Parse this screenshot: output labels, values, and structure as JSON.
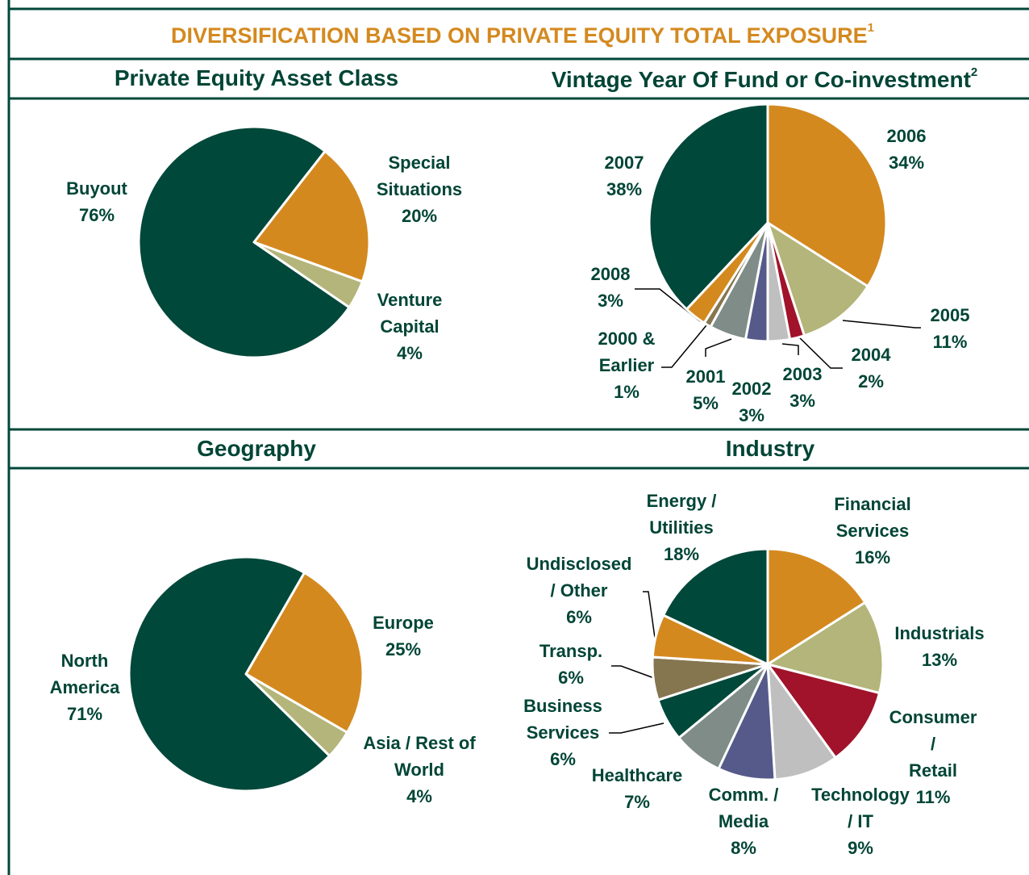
{
  "title": "DIVERSIFICATION BASED ON PRIVATE EQUITY TOTAL EXPOSURE",
  "title_note": "1",
  "chart_data": [
    {
      "type": "pie",
      "title": "Private Equity Asset Class",
      "categories": [
        "Special\nSituations",
        "Venture\nCapital",
        "Buyout"
      ],
      "values": [
        20,
        4,
        76
      ],
      "value_labels": [
        "20%",
        "4%",
        "76%"
      ],
      "colors": [
        "#d4891f",
        "#b3b57a",
        "#00483a"
      ]
    },
    {
      "type": "pie",
      "title": "Vintage Year Of Fund or Co-investment",
      "title_note": "2",
      "categories": [
        "2006",
        "2005",
        "2004",
        "2003",
        "2002",
        "2001",
        "2000 &\nEarlier",
        "2008",
        "2007"
      ],
      "values": [
        34,
        11,
        2,
        3,
        3,
        5,
        1,
        3,
        38
      ],
      "value_labels": [
        "34%",
        "11%",
        "2%",
        "3%",
        "3%",
        "5%",
        "1%",
        "3%",
        "38%"
      ],
      "colors": [
        "#d4891f",
        "#b3b57a",
        "#a0132a",
        "#bfbfbf",
        "#565a8a",
        "#7f8c87",
        "#857650",
        "#d4891f",
        "#00483a"
      ]
    },
    {
      "type": "pie",
      "title": "Geography",
      "categories": [
        "Europe",
        "Asia / Rest of\nWorld",
        "North\nAmerica"
      ],
      "values": [
        25,
        4,
        71
      ],
      "value_labels": [
        "25%",
        "4%",
        "71%"
      ],
      "colors": [
        "#d4891f",
        "#b3b57a",
        "#00483a"
      ]
    },
    {
      "type": "pie",
      "title": "Industry",
      "categories": [
        "Financial\nServices",
        "Industrials",
        "Consumer /\nRetail",
        "Technology\n/ IT",
        "Comm. /\nMedia",
        "Healthcare",
        "Business\nServices",
        "Transp.",
        "Undisclosed\n/ Other",
        "Energy /\nUtilities"
      ],
      "values": [
        16,
        13,
        11,
        9,
        8,
        7,
        6,
        6,
        6,
        18
      ],
      "value_labels": [
        "16%",
        "13%",
        "11%",
        "9%",
        "8%",
        "7%",
        "6%",
        "6%",
        "6%",
        "18%"
      ],
      "colors": [
        "#d4891f",
        "#b3b57a",
        "#a0132a",
        "#bfbfbf",
        "#565a8a",
        "#7f8c87",
        "#00483a",
        "#857650",
        "#d4891f",
        "#00483a"
      ]
    }
  ]
}
